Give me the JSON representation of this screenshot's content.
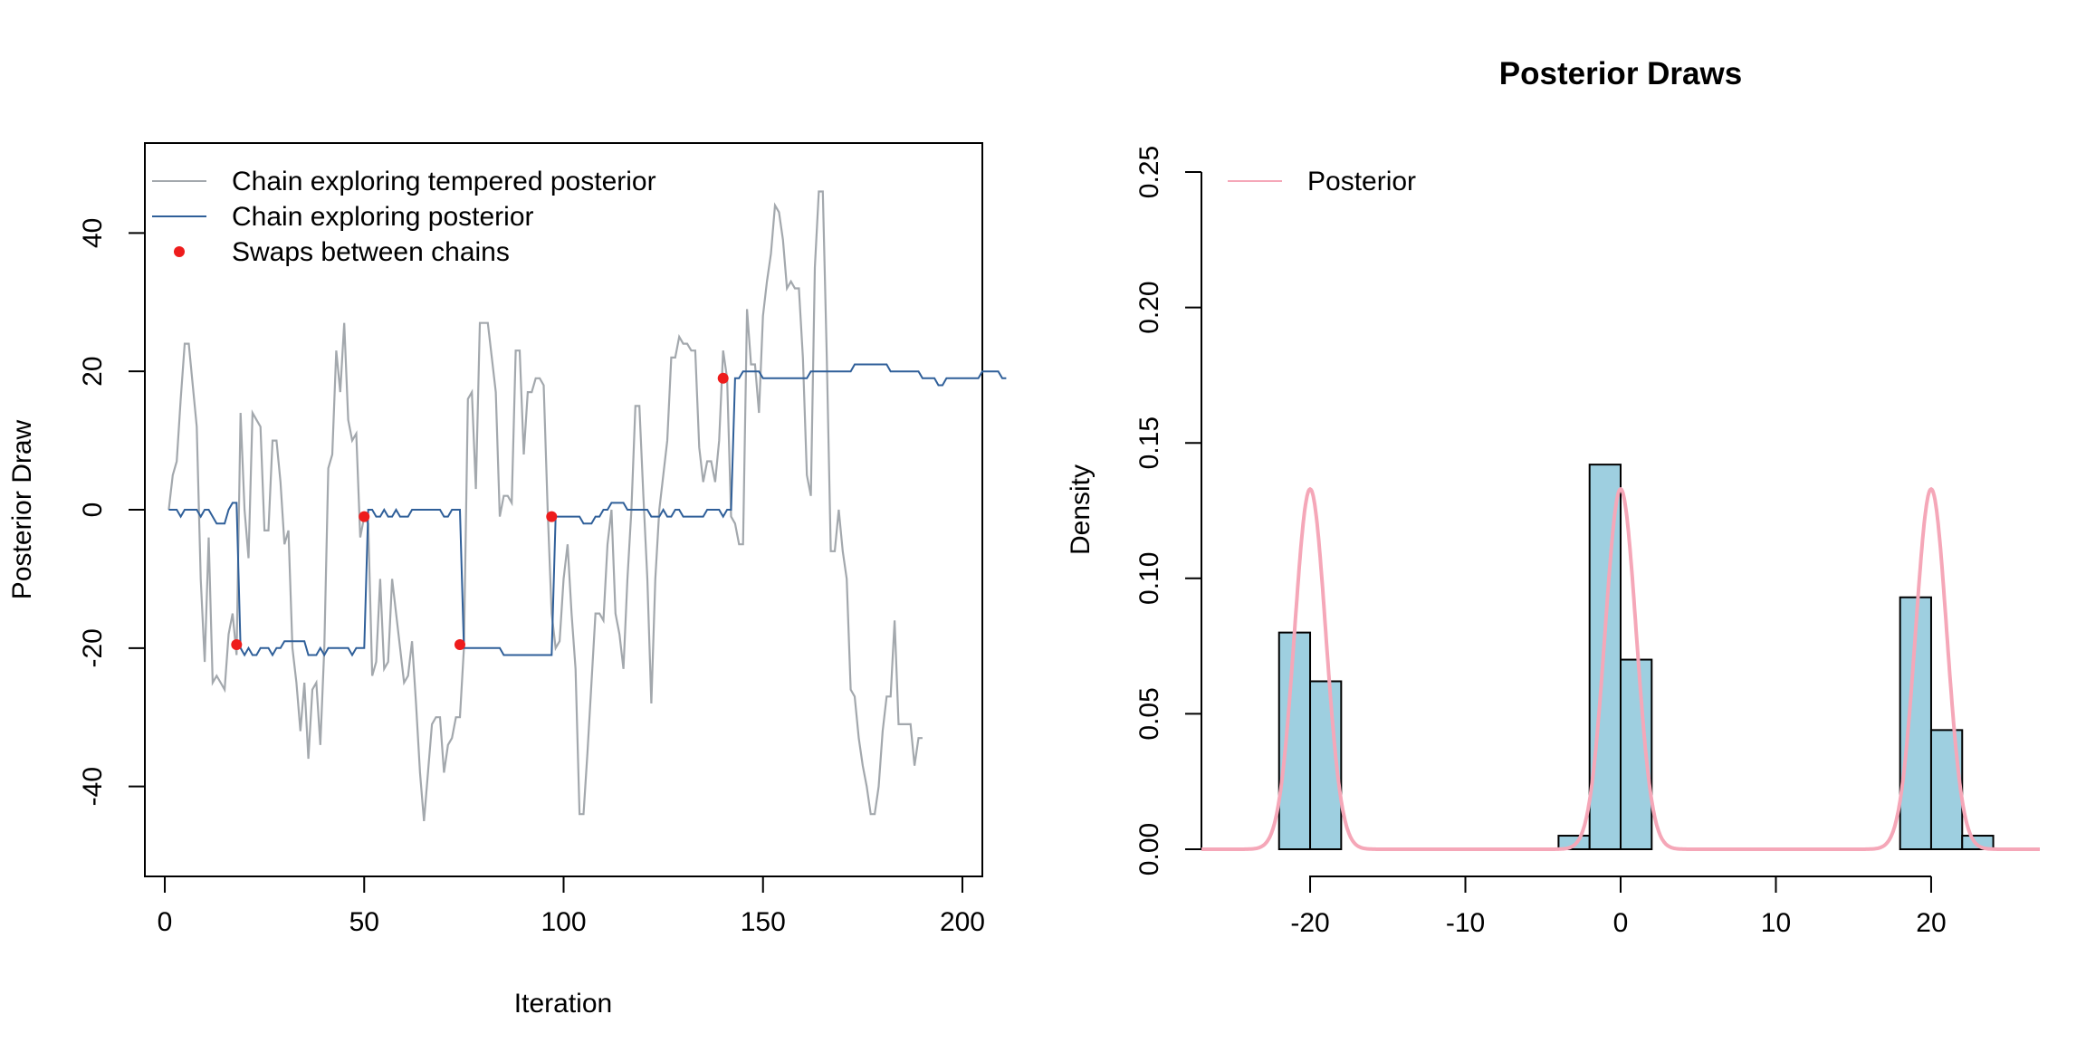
{
  "chart_data": [
    {
      "type": "line",
      "title": "",
      "xlabel": "Iteration",
      "ylabel": "Posterior Draw",
      "xlim": [
        -5,
        205
      ],
      "ylim": [
        -53,
        53
      ],
      "xticks": [
        0,
        50,
        100,
        150,
        200
      ],
      "yticks": [
        -40,
        -20,
        0,
        20,
        40
      ],
      "legend": {
        "position": "top-left",
        "entries": [
          {
            "label": "Chain exploring tempered posterior",
            "color": "#a3a8ad",
            "symbol": "line"
          },
          {
            "label": "Chain exploring posterior",
            "color": "#2f5f99",
            "symbol": "line"
          },
          {
            "label": "Swaps between chains",
            "color": "#ee1c1c",
            "symbol": "point"
          }
        ]
      },
      "series": [
        {
          "color": "#a3a8ad",
          "values": [
            0,
            5,
            7,
            16,
            24,
            24,
            18,
            12,
            -10,
            -22,
            -4,
            -25,
            -24,
            -25,
            -26,
            -18,
            -15,
            -21,
            14,
            0,
            -7,
            14,
            13,
            12,
            -3,
            -3,
            10,
            10,
            4,
            -5,
            -3,
            -20,
            -25,
            -32,
            -25,
            -36,
            -26,
            -25,
            -34,
            -20,
            6,
            8,
            23,
            17,
            27,
            13,
            10,
            11,
            -4,
            -1,
            -2,
            -24,
            -22,
            -10,
            -23,
            -22,
            -10,
            -15,
            -20,
            -25,
            -24,
            -19,
            -28,
            -38,
            -45,
            -38,
            -31,
            -30,
            -30,
            -38,
            -34,
            -33,
            -30,
            -30,
            -20,
            16,
            17,
            3,
            27,
            27,
            27,
            22,
            17,
            -1,
            2,
            2,
            1,
            23,
            23,
            8,
            17,
            17,
            19,
            19,
            18,
            0,
            -15,
            -20,
            -19,
            -10,
            -5,
            -15,
            -23,
            -44,
            -44,
            -35,
            -25,
            -15,
            -15,
            -16,
            -5,
            0,
            -15,
            -18,
            -23,
            -10,
            0,
            15,
            15,
            2,
            -10,
            -28,
            -10,
            0,
            5,
            10,
            22,
            22,
            25,
            24,
            24,
            23,
            23,
            9,
            4,
            7,
            7,
            4,
            10,
            23,
            19,
            -1,
            -2,
            -5,
            -5,
            29,
            21,
            21,
            14,
            28,
            33,
            37,
            44,
            43,
            39,
            32,
            33,
            32,
            32,
            22,
            5,
            2,
            35,
            46,
            46,
            22,
            -6,
            -6,
            0,
            -6,
            -10,
            -26,
            -27,
            -33,
            -37,
            -40,
            -44,
            -44,
            -40,
            -32,
            -27,
            -27,
            -16,
            -31,
            -31,
            -31,
            -31,
            -37,
            -33,
            -33
          ]
        },
        {
          "color": "#2f5f99",
          "values": [
            0,
            0,
            0,
            -1,
            0,
            0,
            0,
            0,
            -1,
            0,
            0,
            -1,
            -2,
            -2,
            -2,
            0,
            1,
            1,
            -20,
            -21,
            -20,
            -21,
            -21,
            -20,
            -20,
            -20,
            -21,
            -20,
            -20,
            -19,
            -19,
            -19,
            -19,
            -19,
            -19,
            -21,
            -21,
            -21,
            -20,
            -21,
            -20,
            -20,
            -20,
            -20,
            -20,
            -20,
            -21,
            -20,
            -20,
            -20,
            0,
            0,
            -1,
            -1,
            0,
            -1,
            -1,
            0,
            -1,
            -1,
            -1,
            0,
            0,
            0,
            0,
            0,
            0,
            0,
            0,
            -1,
            -1,
            0,
            0,
            0,
            -20,
            -20,
            -20,
            -20,
            -20,
            -20,
            -20,
            -20,
            -20,
            -20,
            -21,
            -21,
            -21,
            -21,
            -21,
            -21,
            -21,
            -21,
            -21,
            -21,
            -21,
            -21,
            -21,
            -1,
            -1,
            -1,
            -1,
            -1,
            -1,
            -1,
            -2,
            -2,
            -2,
            -1,
            -1,
            0,
            0,
            1,
            1,
            1,
            1,
            0,
            0,
            0,
            0,
            0,
            0,
            -1,
            -1,
            -1,
            0,
            -1,
            -1,
            0,
            0,
            -1,
            -1,
            -1,
            -1,
            -1,
            -1,
            0,
            0,
            0,
            0,
            -1,
            0,
            0,
            19,
            19,
            20,
            20,
            20,
            20,
            20,
            19,
            19,
            19,
            19,
            19,
            19,
            19,
            19,
            19,
            19,
            19,
            19,
            20,
            20,
            20,
            20,
            20,
            20,
            20,
            20,
            20,
            20,
            20,
            21,
            21,
            21,
            21,
            21,
            21,
            21,
            21,
            21,
            20,
            20,
            20,
            20,
            20,
            20,
            20,
            20,
            19,
            19,
            19,
            19,
            18,
            18,
            19,
            19,
            19,
            19,
            19,
            19,
            19,
            19,
            19,
            20,
            20,
            20,
            20,
            20,
            19,
            19
          ]
        }
      ],
      "swaps": {
        "x": [
          18,
          50,
          74,
          97,
          140
        ],
        "y": [
          -19.5,
          -1,
          -19.5,
          -1,
          19
        ]
      }
    },
    {
      "type": "bar",
      "title": "Posterior Draws",
      "xlabel": "",
      "ylabel": "Density",
      "xlim": [
        -27,
        27
      ],
      "ylim": [
        0,
        0.25
      ],
      "xticks": [
        -20,
        -10,
        0,
        10,
        20
      ],
      "yticks": [
        0.0,
        0.05,
        0.1,
        0.15,
        0.2,
        0.25
      ],
      "ytick_labels": [
        "0.00",
        "0.05",
        "0.10",
        "0.15",
        "0.20",
        "0.25"
      ],
      "bar_color": "#9ecfe0",
      "bins": [
        {
          "from": -22,
          "to": -20,
          "density": 0.08
        },
        {
          "from": -20,
          "to": -18,
          "density": 0.062
        },
        {
          "from": -4,
          "to": -2,
          "density": 0.005
        },
        {
          "from": -2,
          "to": 0,
          "density": 0.142
        },
        {
          "from": 0,
          "to": 2,
          "density": 0.07
        },
        {
          "from": 18,
          "to": 20,
          "density": 0.093
        },
        {
          "from": 20,
          "to": 22,
          "density": 0.044
        },
        {
          "from": 22,
          "to": 24,
          "density": 0.005
        }
      ],
      "legend": {
        "position": "top-left",
        "entries": [
          {
            "label": "Posterior",
            "color": "#f5a7b8",
            "symbol": "line"
          }
        ]
      },
      "density_curve": {
        "color": "#f5a7b8",
        "components": [
          {
            "mean": -20,
            "sd": 1,
            "weight": 0.3333
          },
          {
            "mean": 0,
            "sd": 1,
            "weight": 0.3333
          },
          {
            "mean": 20,
            "sd": 1,
            "weight": 0.3333
          }
        ]
      }
    }
  ]
}
